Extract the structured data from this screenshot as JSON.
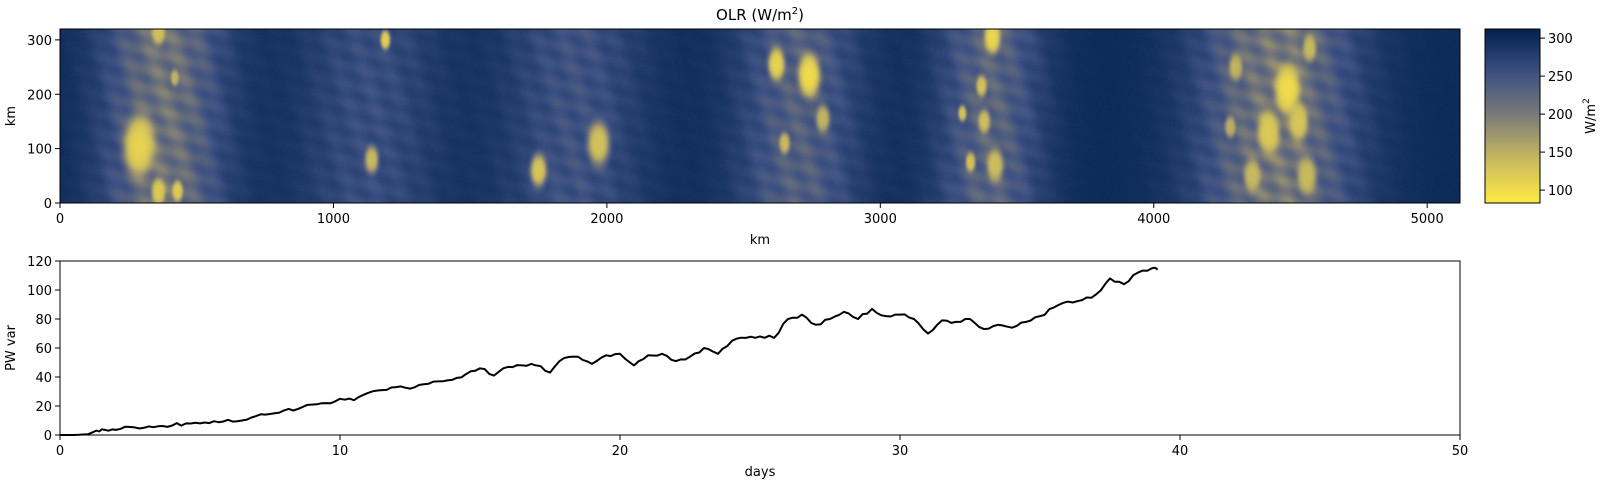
{
  "chart_data": [
    {
      "type": "heatmap",
      "title": "OLR (W/m²)",
      "title_main": "OLR (W/m",
      "title_sup": "2",
      "title_end": ")",
      "xlabel": "km",
      "ylabel": "km",
      "xlim": [
        0,
        5120
      ],
      "ylim": [
        0,
        320
      ],
      "xticks": [
        0,
        1000,
        2000,
        3000,
        4000,
        5000
      ],
      "yticks": [
        0,
        100,
        200,
        300
      ],
      "colormap": "cividis_r",
      "colorbar": {
        "label": "W/m²",
        "label_main": "W/m",
        "label_sup": "2",
        "range": [
          83,
          312
        ],
        "ticks": [
          100,
          150,
          200,
          250,
          300
        ]
      },
      "convective_bands": [
        {
          "center_km": 380,
          "width_km": 330,
          "strength": 0.75
        },
        {
          "center_km": 1130,
          "width_km": 380,
          "strength": 0.35
        },
        {
          "center_km": 1880,
          "width_km": 380,
          "strength": 0.4
        },
        {
          "center_km": 2700,
          "width_km": 330,
          "strength": 0.55
        },
        {
          "center_km": 3400,
          "width_km": 280,
          "strength": 0.6
        },
        {
          "center_km": 4450,
          "width_km": 420,
          "strength": 0.8
        }
      ],
      "cells": [
        {
          "x": 360,
          "y": 315,
          "r": 25,
          "olr": 130
        },
        {
          "x": 420,
          "y": 230,
          "r": 15,
          "olr": 145
        },
        {
          "x": 290,
          "y": 105,
          "r": 55,
          "olr": 110
        },
        {
          "x": 360,
          "y": 20,
          "r": 25,
          "olr": 120
        },
        {
          "x": 430,
          "y": 22,
          "r": 20,
          "olr": 120
        },
        {
          "x": 1190,
          "y": 300,
          "r": 18,
          "olr": 115
        },
        {
          "x": 1140,
          "y": 80,
          "r": 25,
          "olr": 140
        },
        {
          "x": 1750,
          "y": 60,
          "r": 30,
          "olr": 125
        },
        {
          "x": 1970,
          "y": 110,
          "r": 40,
          "olr": 130
        },
        {
          "x": 2620,
          "y": 255,
          "r": 30,
          "olr": 110
        },
        {
          "x": 2740,
          "y": 235,
          "r": 40,
          "olr": 100
        },
        {
          "x": 2790,
          "y": 155,
          "r": 25,
          "olr": 145
        },
        {
          "x": 2650,
          "y": 110,
          "r": 20,
          "olr": 140
        },
        {
          "x": 3410,
          "y": 305,
          "r": 30,
          "olr": 105
        },
        {
          "x": 3370,
          "y": 215,
          "r": 20,
          "olr": 130
        },
        {
          "x": 3300,
          "y": 165,
          "r": 15,
          "olr": 130
        },
        {
          "x": 3380,
          "y": 150,
          "r": 22,
          "olr": 135
        },
        {
          "x": 3330,
          "y": 75,
          "r": 18,
          "olr": 130
        },
        {
          "x": 3420,
          "y": 70,
          "r": 30,
          "olr": 135
        },
        {
          "x": 4490,
          "y": 210,
          "r": 45,
          "olr": 100
        },
        {
          "x": 4420,
          "y": 130,
          "r": 40,
          "olr": 120
        },
        {
          "x": 4530,
          "y": 150,
          "r": 35,
          "olr": 125
        },
        {
          "x": 4360,
          "y": 50,
          "r": 30,
          "olr": 140
        },
        {
          "x": 4560,
          "y": 50,
          "r": 35,
          "olr": 140
        },
        {
          "x": 4300,
          "y": 250,
          "r": 25,
          "olr": 145
        },
        {
          "x": 4570,
          "y": 285,
          "r": 25,
          "olr": 140
        },
        {
          "x": 4280,
          "y": 140,
          "r": 20,
          "olr": 150
        }
      ]
    },
    {
      "type": "line",
      "title": "",
      "xlabel": "days",
      "ylabel": "PW var",
      "xlim": [
        0,
        50
      ],
      "ylim": [
        0,
        120
      ],
      "xticks": [
        0,
        10,
        20,
        30,
        40,
        50
      ],
      "yticks": [
        0,
        20,
        40,
        60,
        80,
        100,
        120
      ],
      "series": [
        {
          "name": "PW var",
          "color": "#000000",
          "x": [
            0.0,
            0.5,
            1.0,
            1.3,
            1.6,
            2.0,
            2.5,
            3.0,
            3.5,
            4.0,
            4.5,
            5.0,
            5.5,
            6.0,
            6.5,
            7.0,
            7.5,
            8.0,
            8.5,
            9.0,
            9.5,
            10.0,
            10.5,
            11.0,
            11.5,
            12.0,
            12.5,
            13.0,
            13.5,
            14.0,
            14.5,
            15.0,
            15.5,
            16.0,
            16.5,
            17.0,
            17.5,
            18.0,
            18.5,
            19.0,
            19.5,
            20.0,
            20.5,
            21.0,
            21.5,
            22.0,
            22.5,
            23.0,
            23.5,
            24.0,
            24.5,
            25.0,
            25.5,
            26.0,
            26.5,
            27.0,
            27.5,
            28.0,
            28.5,
            29.0,
            29.5,
            30.0,
            30.5,
            31.0,
            31.5,
            32.0,
            32.5,
            33.0,
            33.5,
            34.0,
            34.5,
            35.0,
            35.5,
            36.0,
            36.5,
            37.0,
            37.5,
            38.0,
            38.5,
            39.0,
            39.2
          ],
          "y": [
            0.0,
            0.0,
            0.5,
            3.0,
            3.5,
            3.5,
            5.5,
            5.0,
            6.0,
            6.5,
            8.0,
            8.0,
            9.5,
            10.5,
            10.0,
            13.0,
            14.5,
            17.0,
            18.0,
            21.0,
            22.0,
            25.0,
            24.0,
            29.0,
            31.0,
            33.0,
            32.0,
            35.0,
            37.0,
            38.0,
            42.0,
            46.0,
            41.0,
            47.0,
            48.0,
            48.0,
            43.0,
            53.0,
            54.0,
            49.0,
            55.0,
            56.0,
            48.0,
            55.0,
            56.0,
            51.0,
            54.0,
            60.0,
            56.0,
            65.0,
            67.0,
            68.0,
            67.0,
            80.0,
            83.0,
            76.0,
            80.0,
            85.0,
            80.0,
            87.0,
            82.0,
            83.0,
            80.0,
            70.0,
            79.0,
            78.0,
            80.0,
            73.0,
            76.0,
            74.0,
            78.0,
            82.0,
            88.0,
            92.0,
            93.0,
            97.0,
            108.0,
            104.0,
            112.0,
            115.0,
            114.0
          ]
        }
      ]
    }
  ]
}
